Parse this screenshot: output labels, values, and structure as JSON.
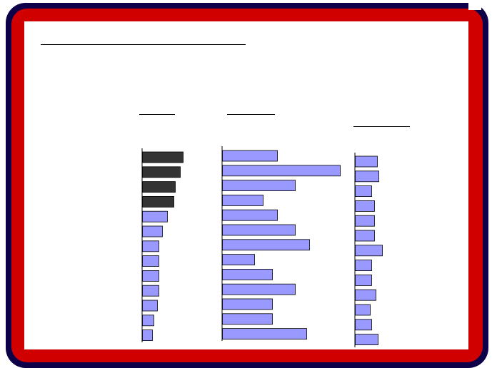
{
  "colors": {
    "frame_outer": "#0d0048",
    "frame_red": "#d10000",
    "dark_bar": "#333333",
    "light_bar": "#9999ff",
    "bar_stroke": "#000000"
  },
  "chart_data": [
    {
      "type": "bar",
      "orientation": "horizontal",
      "title": "",
      "xlabel": "",
      "ylabel": "",
      "values": [
        57,
        53,
        46,
        44,
        35,
        28,
        23,
        23,
        23,
        23,
        21,
        16,
        14
      ],
      "highlight": [
        true,
        true,
        true,
        true,
        false,
        false,
        false,
        false,
        false,
        false,
        false,
        false,
        false
      ],
      "xlim": [
        0,
        100
      ]
    },
    {
      "type": "bar",
      "orientation": "horizontal",
      "title": "",
      "xlabel": "",
      "ylabel": "",
      "values": [
        77,
        165,
        102,
        57,
        77,
        102,
        122,
        45,
        70,
        102,
        70,
        70,
        118
      ],
      "xlim": [
        0,
        180
      ]
    },
    {
      "type": "bar",
      "orientation": "horizontal",
      "title": "",
      "xlabel": "",
      "ylabel": "",
      "values": [
        31,
        33,
        23,
        27,
        27,
        27,
        38,
        23,
        23,
        29,
        21,
        23,
        32
      ],
      "xlim": [
        0,
        60
      ]
    }
  ]
}
